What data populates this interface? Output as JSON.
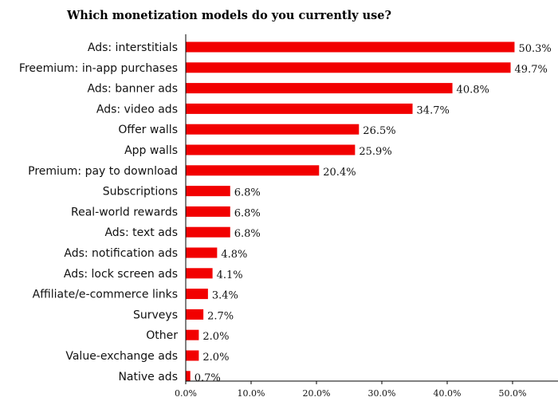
{
  "chart_data": {
    "type": "bar",
    "orientation": "horizontal",
    "title": "Which monetization models do you currently use?",
    "xlabel": "",
    "ylabel": "",
    "xlim": [
      0,
      55
    ],
    "x_ticks": [
      "0.0%",
      "10.0%",
      "20.0%",
      "30.0%",
      "40.0%",
      "50.0%"
    ],
    "grid": false,
    "bar_color": "#f20000",
    "categories": [
      "Ads: interstitials",
      "Freemium: in-app purchases",
      "Ads: banner ads",
      "Ads: video ads",
      "Offer walls",
      "App walls",
      "Premium: pay to download",
      "Subscriptions",
      "Real-world rewards",
      "Ads: text ads",
      "Ads: notification ads",
      "Ads: lock screen ads",
      "Affiliate/e-commerce links",
      "Surveys",
      "Other",
      "Value-exchange ads",
      "Native ads"
    ],
    "values": [
      50.3,
      49.7,
      40.8,
      34.7,
      26.5,
      25.9,
      20.4,
      6.8,
      6.8,
      6.8,
      4.8,
      4.1,
      3.4,
      2.7,
      2.0,
      2.0,
      0.7
    ],
    "value_labels": [
      "50.3%",
      "49.7%",
      "40.8%",
      "34.7%",
      "26.5%",
      "25.9%",
      "20.4%",
      "6.8%",
      "6.8%",
      "6.8%",
      "4.8%",
      "4.1%",
      "3.4%",
      "2.7%",
      "2.0%",
      "2.0%",
      "0.7%"
    ]
  }
}
